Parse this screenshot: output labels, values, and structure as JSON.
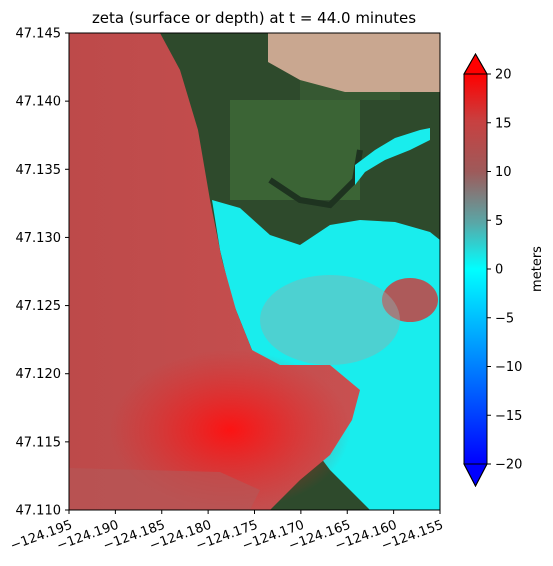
{
  "chart_data": {
    "type": "heatmap",
    "title": "zeta (surface or depth) at t = 44.0 minutes",
    "xlim": [
      -124.195,
      -124.155
    ],
    "ylim": [
      47.11,
      47.145
    ],
    "x_ticks": [
      "−124.195",
      "−124.190",
      "−124.185",
      "−124.180",
      "−124.175",
      "−124.170",
      "−124.165",
      "−124.160",
      "−124.155"
    ],
    "y_ticks": [
      "47.110",
      "47.115",
      "47.120",
      "47.125",
      "47.130",
      "47.135",
      "47.140",
      "47.145"
    ],
    "colorbar": {
      "label": "meters",
      "range": [
        -20,
        20
      ],
      "ticks": [
        "−20",
        "−15",
        "−10",
        "−5",
        "0",
        "5",
        "10",
        "15",
        "20"
      ],
      "extend": "both",
      "colors": {
        "min": "#0000ff",
        "zero": "#00ffff",
        "mid": "#9e5a5a",
        "max": "#ff0000"
      }
    },
    "colors": {
      "offshore_red": "#c34a4a",
      "nearshore_red": "#e82222",
      "cyan": "#19eded",
      "forest": "#2e4a2c",
      "clearcut": "#c9a790"
    }
  }
}
